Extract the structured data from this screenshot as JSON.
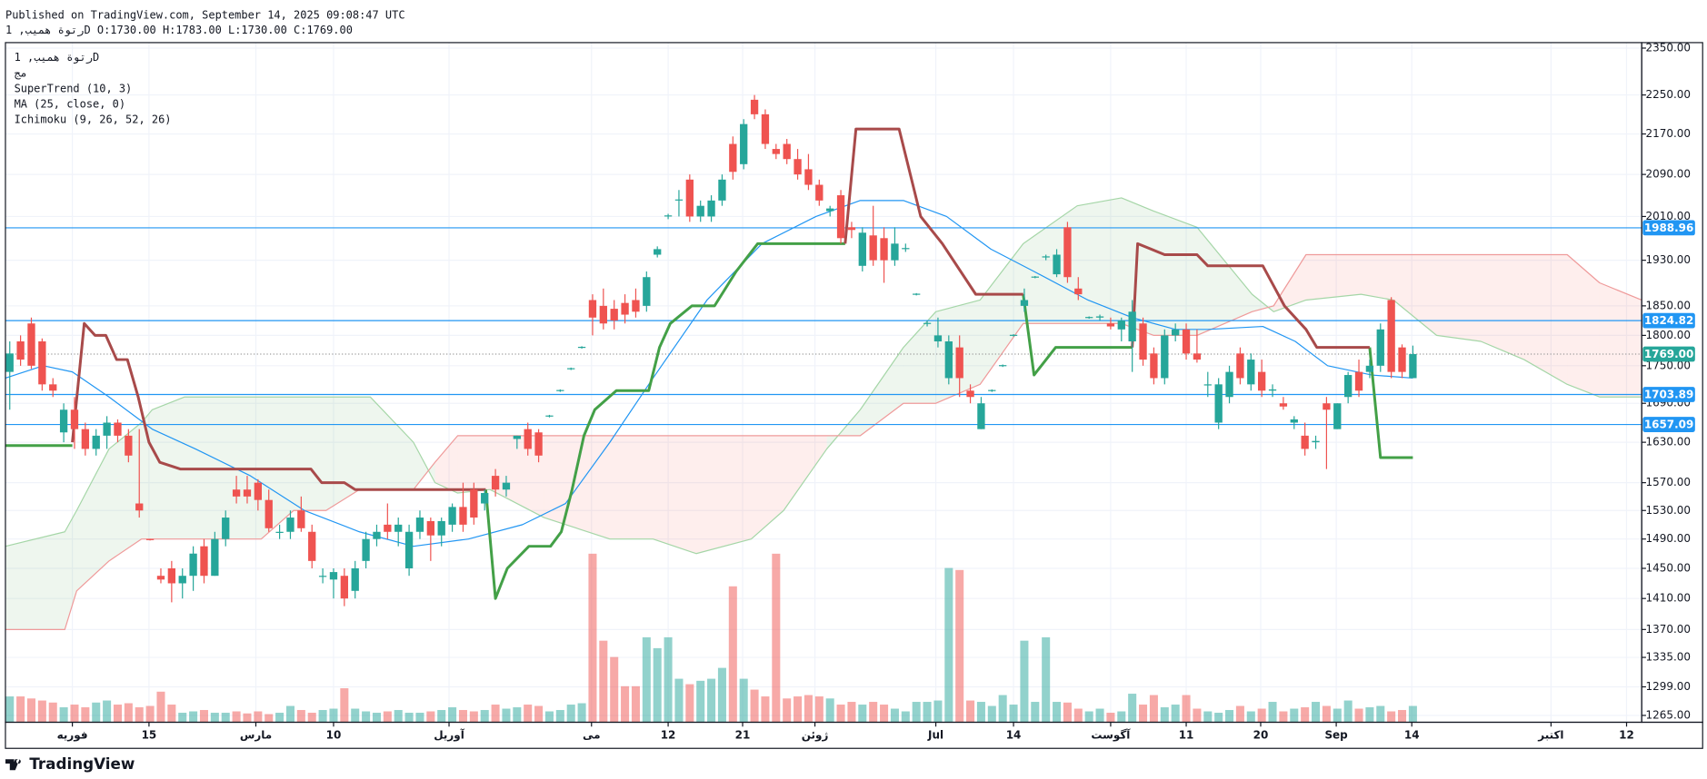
{
  "chart_data": {
    "type": "candlestick",
    "published": "Published on TradingView.com, September 14, 2025 09:08:47 UTC",
    "symbol_info": "رتوة همیب, 1D O:1730.00 H:1783.00 L:1730.00 C:1769.00",
    "indicators": [
      "رتوة همیب, 1D",
      "مج",
      "SuperTrend (10, 3)",
      "MA (25, close, 0)",
      "Ichimoku (9, 26, 52, 26)"
    ],
    "brand": "TradingView",
    "log_scale": true,
    "grid": true,
    "up_color": "#26a69a",
    "down_color": "#ef5350",
    "ylim": [
      1257,
      2362
    ],
    "yticks": [
      {
        "value": 2350,
        "label": "2350.00"
      },
      {
        "value": 2250,
        "label": "2250.00"
      },
      {
        "value": 2170,
        "label": "2170.00"
      },
      {
        "value": 2090,
        "label": "2090.00"
      },
      {
        "value": 2010,
        "label": "2010.00"
      },
      {
        "value": 1930,
        "label": "1930.00"
      },
      {
        "value": 1850,
        "label": "1850.00"
      },
      {
        "value": 1800,
        "label": "1800.00"
      },
      {
        "value": 1750,
        "label": "1750.00"
      },
      {
        "value": 1690,
        "label": "1690.00"
      },
      {
        "value": 1630,
        "label": "1630.00"
      },
      {
        "value": 1570,
        "label": "1570.00"
      },
      {
        "value": 1530,
        "label": "1530.00"
      },
      {
        "value": 1490,
        "label": "1490.00"
      },
      {
        "value": 1450,
        "label": "1450.00"
      },
      {
        "value": 1410,
        "label": "1410.00"
      },
      {
        "value": 1370,
        "label": "1370.00"
      },
      {
        "value": 1335,
        "label": "1335.00"
      },
      {
        "value": 1299,
        "label": "1299.00"
      },
      {
        "value": 1265,
        "label": "1265.00"
      }
    ],
    "xlim": [
      -0.4,
      151.2
    ],
    "xticks": [
      {
        "value": 5.8,
        "label": "فوریه"
      },
      {
        "value": 12.9,
        "label": "15"
      },
      {
        "value": 22.8,
        "label": "مارس"
      },
      {
        "value": 30,
        "label": "10"
      },
      {
        "value": 40.7,
        "label": "آوریل"
      },
      {
        "value": 53.9,
        "label": "می"
      },
      {
        "value": 61,
        "label": "12"
      },
      {
        "value": 67.9,
        "label": "21"
      },
      {
        "value": 74.6,
        "label": "ژوئن"
      },
      {
        "value": 85.8,
        "label": "Jul"
      },
      {
        "value": 93,
        "label": "14"
      },
      {
        "value": 102,
        "label": "آگوست"
      },
      {
        "value": 109,
        "label": "11"
      },
      {
        "value": 115.9,
        "label": "20"
      },
      {
        "value": 122.9,
        "label": "Sep"
      },
      {
        "value": 129.9,
        "label": "14"
      },
      {
        "value": 142.8,
        "label": "اکتبر"
      },
      {
        "value": 149.8,
        "label": "12"
      }
    ],
    "open": [
      1740,
      1790,
      1820,
      1790,
      1720,
      1645,
      1680,
      1650,
      1620,
      1640,
      1660,
      1640,
      1540,
      1490,
      1440,
      1450,
      1430,
      1440,
      1480,
      1440,
      1490,
      1560,
      1560,
      1570,
      1545,
      1500,
      1500,
      1530,
      1500,
      1440,
      1435,
      1440,
      1420,
      1460,
      1490,
      1510,
      1500,
      1450,
      1500,
      1515,
      1495,
      1510,
      1535,
      1560,
      1540,
      1580,
      1560,
      1635,
      1650,
      1645,
      1670,
      1710,
      1745,
      1780,
      1860,
      1850,
      1845,
      1855,
      1860,
      1850,
      1940,
      2010,
      2040,
      2080,
      2010,
      2010,
      2040,
      2150,
      2110,
      2240,
      2210,
      2140,
      2150,
      2120,
      2100,
      2070,
      2020,
      2050,
      1990,
      1920,
      1975,
      1970,
      1930,
      1950,
      1870,
      1820,
      1790,
      1730,
      1780,
      1710,
      1650,
      1710,
      1750,
      1800,
      1850,
      1900,
      1935,
      1905,
      1990,
      1880,
      1830,
      1830,
      1820,
      1810,
      1790,
      1820,
      1770,
      1730,
      1800,
      1810,
      1770,
      1720,
      1660,
      1700,
      1770,
      1720,
      1740,
      1710,
      1690,
      1660,
      1640,
      1630,
      1690,
      1650,
      1700,
      1740,
      1740,
      1750,
      1860,
      1780,
      1730
    ],
    "high": [
      1790,
      1800,
      1830,
      1795,
      1730,
      1690,
      1700,
      1660,
      1650,
      1670,
      1665,
      1650,
      1650,
      1490,
      1450,
      1460,
      1450,
      1480,
      1490,
      1500,
      1530,
      1580,
      1580,
      1575,
      1560,
      1510,
      1530,
      1550,
      1510,
      1450,
      1450,
      1450,
      1460,
      1500,
      1510,
      1540,
      1520,
      1510,
      1530,
      1520,
      1520,
      1540,
      1570,
      1570,
      1560,
      1590,
      1580,
      1640,
      1660,
      1650,
      1672,
      1712,
      1747,
      1782,
      1870,
      1880,
      1860,
      1870,
      1880,
      1910,
      1955,
      2015,
      2060,
      2090,
      2040,
      2050,
      2090,
      2165,
      2200,
      2250,
      2220,
      2150,
      2160,
      2140,
      2130,
      2080,
      2030,
      2060,
      2000,
      1990,
      2030,
      1990,
      1990,
      1960,
      1872,
      1825,
      1830,
      1800,
      1800,
      1720,
      1700,
      1712,
      1752,
      1802,
      1880,
      1902,
      1940,
      1950,
      2000,
      1900,
      1832,
      1835,
      1830,
      1830,
      1860,
      1830,
      1780,
      1810,
      1820,
      1820,
      1810,
      1740,
      1730,
      1750,
      1780,
      1770,
      1760,
      1720,
      1700,
      1670,
      1660,
      1640,
      1700,
      1690,
      1740,
      1760,
      1760,
      1820,
      1865,
      1785,
      1783
    ],
    "low": [
      1680,
      1750,
      1745,
      1710,
      1700,
      1630,
      1620,
      1610,
      1610,
      1620,
      1630,
      1600,
      1520,
      1488,
      1430,
      1405,
      1410,
      1420,
      1430,
      1440,
      1480,
      1540,
      1540,
      1530,
      1500,
      1490,
      1490,
      1500,
      1450,
      1430,
      1410,
      1400,
      1410,
      1450,
      1480,
      1490,
      1480,
      1440,
      1490,
      1460,
      1480,
      1500,
      1500,
      1510,
      1530,
      1550,
      1550,
      1620,
      1610,
      1600,
      1668,
      1708,
      1743,
      1778,
      1800,
      1810,
      1810,
      1820,
      1830,
      1840,
      1935,
      2005,
      2010,
      2000,
      2000,
      2000,
      2030,
      2080,
      2100,
      2200,
      2140,
      2120,
      2110,
      2080,
      2060,
      2030,
      2010,
      1960,
      1970,
      1910,
      1920,
      1890,
      1920,
      1945,
      1868,
      1815,
      1780,
      1720,
      1700,
      1690,
      1650,
      1708,
      1748,
      1798,
      1840,
      1898,
      1930,
      1900,
      1890,
      1860,
      1828,
      1825,
      1810,
      1790,
      1740,
      1750,
      1720,
      1720,
      1790,
      1760,
      1755,
      1700,
      1650,
      1690,
      1720,
      1710,
      1700,
      1700,
      1680,
      1650,
      1610,
      1620,
      1590,
      1650,
      1690,
      1700,
      1730,
      1740,
      1730,
      1730,
      1730
    ],
    "close": [
      1770,
      1760,
      1750,
      1720,
      1710,
      1680,
      1650,
      1620,
      1640,
      1660,
      1640,
      1610,
      1530,
      1489,
      1435,
      1430,
      1440,
      1470,
      1440,
      1490,
      1520,
      1550,
      1550,
      1545,
      1505,
      1500,
      1520,
      1505,
      1460,
      1440,
      1445,
      1410,
      1450,
      1490,
      1500,
      1500,
      1510,
      1500,
      1520,
      1495,
      1515,
      1535,
      1510,
      1520,
      1555,
      1560,
      1570,
      1640,
      1620,
      1610,
      1671,
      1711,
      1746,
      1781,
      1830,
      1820,
      1825,
      1835,
      1840,
      1900,
      1950,
      2012,
      2042,
      2010,
      2030,
      2040,
      2080,
      2095,
      2190,
      2210,
      2150,
      2130,
      2120,
      2090,
      2070,
      2040,
      2025,
      1970,
      1985,
      1980,
      1930,
      1930,
      1960,
      1952,
      1871,
      1821,
      1800,
      1790,
      1730,
      1700,
      1690,
      1711,
      1751,
      1801,
      1860,
      1901,
      1937,
      1940,
      1900,
      1870,
      1831,
      1832,
      1815,
      1825,
      1840,
      1760,
      1730,
      1800,
      1810,
      1770,
      1760,
      1720,
      1720,
      1740,
      1730,
      1760,
      1710,
      1712,
      1685,
      1665,
      1620,
      1632,
      1680,
      1690,
      1735,
      1710,
      1750,
      1810,
      1740,
      1740,
      1769
    ],
    "volume": [
      38,
      38,
      35,
      32,
      29,
      22,
      26,
      22,
      29,
      32,
      26,
      28,
      22,
      24,
      45,
      26,
      14,
      16,
      18,
      14,
      14,
      16,
      13,
      16,
      12,
      14,
      24,
      18,
      14,
      18,
      20,
      50,
      20,
      16,
      14,
      16,
      18,
      14,
      14,
      16,
      18,
      22,
      18,
      16,
      18,
      26,
      20,
      22,
      26,
      24,
      16,
      18,
      26,
      28,
      248,
      120,
      96,
      53,
      53,
      125,
      109,
      125,
      64,
      56,
      61,
      64,
      80,
      200,
      64,
      48,
      38,
      248,
      35,
      38,
      40,
      38,
      35,
      26,
      30,
      26,
      30,
      26,
      20,
      16,
      30,
      30,
      32,
      227,
      224,
      32,
      30,
      24,
      40,
      26,
      120,
      30,
      125,
      30,
      29,
      20,
      16,
      20,
      14,
      16,
      42,
      26,
      40,
      22,
      26,
      40,
      20,
      16,
      14,
      18,
      24,
      16,
      20,
      30,
      16,
      20,
      22,
      30,
      24,
      20,
      32,
      20,
      22,
      24,
      16,
      18,
      24
    ],
    "vlim": [
      0,
      1000
    ],
    "supertrend_up": {
      "color": "#43a047",
      "x": [
        -0.4,
        5.8,
        6.3,
        44.1,
        45,
        46.1,
        48.1,
        50.1,
        51.1,
        52.1,
        53.2,
        54.2,
        56.2,
        59.2,
        60.2,
        61.2,
        63.2,
        65.3,
        67.3,
        69.3,
        77.4,
        85,
        93.9,
        94.9,
        96.9,
        104,
        115,
        126,
        127,
        130
      ],
      "values": [
        1625,
        1625,
        null,
        1560,
        1410,
        1450,
        1480,
        1480,
        1500,
        1560,
        1640,
        1680,
        1710,
        1710,
        1780,
        1820,
        1850,
        1850,
        1910,
        1960,
        1960,
        null,
        1870,
        1735,
        1780,
        1780,
        null,
        1780,
        1607,
        1607
      ]
    },
    "supertrend_down": {
      "color": "#a84a4a",
      "x": [
        5.8,
        6.9,
        7.9,
        8.9,
        9.9,
        10.9,
        11.9,
        12.9,
        13.9,
        15.8,
        27.9,
        28.9,
        31,
        32,
        44.1,
        60,
        77.4,
        78.4,
        82.4,
        84.4,
        86.4,
        89.5,
        93.9,
        99,
        104,
        104.5,
        107,
        110,
        111,
        116.1,
        118.1,
        120.1,
        121.1,
        126
      ],
      "values": [
        1630,
        1820,
        1800,
        1800,
        1760,
        1760,
        1700,
        1630,
        1600,
        1590,
        1590,
        1570,
        1570,
        1560,
        1560,
        null,
        1960,
        2180,
        2180,
        2010,
        1960,
        1870,
        1870,
        null,
        1780,
        1960,
        1940,
        1940,
        1920,
        1920,
        1850,
        1810,
        1780,
        1780
      ]
    },
    "ma": {
      "color": "#2196f3",
      "x": [
        -0.4,
        3.1,
        5.8,
        9.2,
        13.2,
        17.2,
        22.3,
        27.3,
        32.4,
        37.4,
        42.5,
        47.5,
        51.5,
        55.6,
        59.6,
        64.6,
        69.7,
        74.7,
        78.8,
        82.8,
        86.8,
        90.9,
        94.9,
        99.9,
        104,
        108,
        111,
        116.1,
        119.1,
        122.1,
        126.2,
        130
      ],
      "values": [
        1730,
        1750,
        1740,
        1700,
        1650,
        1620,
        1580,
        1530,
        1500,
        1480,
        1490,
        1510,
        1540,
        1630,
        1730,
        1860,
        1960,
        2010,
        2040,
        2040,
        2010,
        1950,
        1910,
        1860,
        1830,
        1810,
        1810,
        1815,
        1790,
        1750,
        1735,
        1730
      ]
    },
    "ichimoku": {
      "up_color": "#43a047",
      "down_color": "#f44336",
      "x": [
        -0.4,
        5.1,
        6.2,
        9.2,
        12.2,
        13.2,
        16.2,
        23.3,
        26.3,
        29.3,
        32.4,
        33.4,
        37.4,
        39.4,
        41.5,
        44.5,
        49.5,
        55.6,
        59.6,
        63.6,
        68.7,
        71.7,
        75.7,
        78.8,
        82.8,
        85.8,
        89.9,
        93.9,
        98.9,
        103,
        106,
        110,
        115.1,
        117.1,
        120.1,
        125.2,
        128.2,
        132.2,
        136.3,
        140.3,
        144.3,
        147.3,
        151.2
      ],
      "span_a": [
        1480,
        1500,
        1530,
        1620,
        1660,
        1680,
        1700,
        1700,
        1700,
        1700,
        1700,
        1700,
        1630,
        1570,
        1555,
        1560,
        1520,
        1490,
        1490,
        1470,
        1490,
        1530,
        1620,
        1680,
        1780,
        1840,
        1860,
        1960,
        2030,
        2045,
        2020,
        1990,
        1870,
        1840,
        1860,
        1870,
        1860,
        1800,
        1790,
        1760,
        1720,
        1700,
        1700
      ],
      "span_b": [
        1370,
        1370,
        1420,
        1460,
        1490,
        1490,
        1490,
        1490,
        1530,
        1530,
        1560,
        1560,
        1560,
        1600,
        1640,
        1640,
        1640,
        1640,
        1640,
        1640,
        1640,
        1640,
        1640,
        1640,
        1690,
        1690,
        1720,
        1820,
        1820,
        1820,
        1800,
        1800,
        1840,
        1850,
        1940,
        1940,
        1940,
        1940,
        1940,
        1940,
        1940,
        1890,
        1860
      ]
    },
    "hlines": [
      {
        "value": 1988.96,
        "label": "1988.96",
        "color": "#2196f3"
      },
      {
        "value": 1824.82,
        "label": "1824.82",
        "color": "#2196f3"
      },
      {
        "value": 1769,
        "label": "1769.00",
        "color": "#26a69a",
        "dotted": true
      },
      {
        "value": 1703.89,
        "label": "1703.89",
        "color": "#2196f3"
      },
      {
        "value": 1657.09,
        "label": "1657.09",
        "color": "#2196f3"
      }
    ]
  }
}
